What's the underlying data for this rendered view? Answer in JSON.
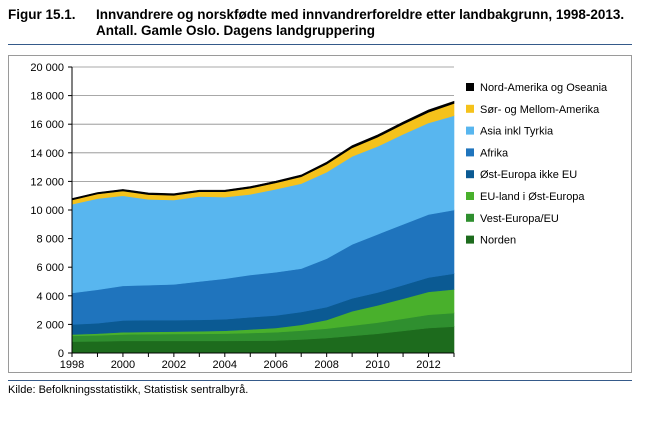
{
  "figure": {
    "number": "Figur 15.1.",
    "title_line1": "Innvandrere og norskfødte med innvandrerforeldre etter landbakgrunn, 1998-2013.",
    "title_line2": "Antall. Gamle Oslo. Dagens landgruppering"
  },
  "source": "Kilde: Befolkningsstatistikk, Statistisk sentralbyrå.",
  "colors": {
    "Norden": "#1d6b1d",
    "Vest-Europa/EU": "#2f8f2f",
    "EU-land i Øst-Europa": "#49b02c",
    "Øst-Europa ikke EU": "#0b5a93",
    "Afrika": "#1f74bd",
    "Asia inkl Tyrkia": "#58b6ef",
    "Sør- og Mellom-Amerika": "#f5c21b",
    "Nord-Amerika og Oseania": "#000000"
  },
  "chart_data": {
    "type": "area",
    "stacked": true,
    "x": [
      1998,
      1999,
      2000,
      2001,
      2002,
      2003,
      2004,
      2005,
      2006,
      2007,
      2008,
      2009,
      2010,
      2011,
      2012,
      2013
    ],
    "xticks": [
      "1998",
      "2000",
      "2002",
      "2004",
      "2006",
      "2008",
      "2010",
      "2012"
    ],
    "ylim": [
      0,
      20000
    ],
    "yticks": [
      "0",
      "2 000",
      "4 000",
      "6 000",
      "8 000",
      "10 000",
      "12 000",
      "14 000",
      "16 000",
      "18 000",
      "20 000"
    ],
    "grid": true,
    "legend_position": "right",
    "series": [
      {
        "name": "Norden",
        "values": [
          800,
          820,
          850,
          850,
          850,
          850,
          850,
          860,
          880,
          950,
          1050,
          1200,
          1350,
          1550,
          1750,
          1850
        ]
      },
      {
        "name": "Vest-Europa/EU",
        "values": [
          400,
          420,
          450,
          470,
          480,
          490,
          510,
          540,
          570,
          620,
          660,
          720,
          780,
          850,
          930,
          950
        ]
      },
      {
        "name": "EU-land i Øst-Europa",
        "values": [
          100,
          120,
          150,
          160,
          170,
          180,
          200,
          250,
          300,
          400,
          600,
          1000,
          1200,
          1400,
          1600,
          1650
        ]
      },
      {
        "name": "Øst-Europa ikke EU",
        "values": [
          700,
          720,
          830,
          820,
          800,
          800,
          800,
          850,
          880,
          900,
          900,
          900,
          900,
          950,
          1000,
          1100
        ]
      },
      {
        "name": "Afrika",
        "values": [
          2200,
          2350,
          2420,
          2450,
          2500,
          2680,
          2840,
          2960,
          3020,
          3030,
          3390,
          3780,
          4070,
          4250,
          4410,
          4450
        ]
      },
      {
        "name": "Asia inkl Tyrkia",
        "values": [
          6200,
          6370,
          6300,
          6000,
          5900,
          5950,
          5700,
          5640,
          5800,
          5950,
          6050,
          6150,
          6150,
          6300,
          6400,
          6600
        ]
      },
      {
        "name": "Sør- og Mellom-Amerika",
        "values": [
          300,
          320,
          330,
          330,
          330,
          330,
          380,
          420,
          450,
          480,
          560,
          600,
          650,
          700,
          750,
          850
        ]
      },
      {
        "name": "Nord-Amerika og Oseania",
        "values": [
          100,
          100,
          110,
          110,
          110,
          110,
          110,
          120,
          120,
          120,
          140,
          150,
          150,
          150,
          160,
          150
        ]
      }
    ],
    "legend_order": [
      "Nord-Amerika og Oseania",
      "Sør- og Mellom-Amerika",
      "Asia inkl Tyrkia",
      "Afrika",
      "Øst-Europa ikke EU",
      "EU-land i Øst-Europa",
      "Vest-Europa/EU",
      "Norden"
    ]
  }
}
